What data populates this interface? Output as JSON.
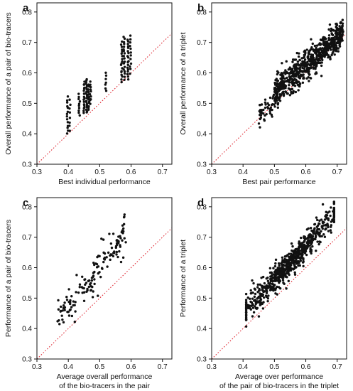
{
  "chart_data": [
    {
      "type": "scatter",
      "panel": "a",
      "xlabel": [
        "Best individual performance"
      ],
      "ylabel": [
        "Overall performance of a pair of bio-tracers"
      ],
      "xlim": [
        0.3,
        0.73
      ],
      "ylim": [
        0.3,
        0.83
      ],
      "xticks": [
        "0.3",
        "0.4",
        "0.5",
        "0.6",
        "0.7"
      ],
      "yticks": [
        "0.3",
        "0.4",
        "0.5",
        "0.6",
        "0.7",
        "0.8"
      ],
      "reference_line": {
        "style": "dotted",
        "color": "#e0303a",
        "equation": "y = x"
      },
      "point_color": "#111111",
      "clusters": [
        {
          "x": 0.397,
          "ymin": 0.4,
          "ymax": 0.52,
          "n": 14
        },
        {
          "x": 0.405,
          "ymin": 0.41,
          "ymax": 0.51,
          "n": 8
        },
        {
          "x": 0.435,
          "ymin": 0.46,
          "ymax": 0.53,
          "n": 10
        },
        {
          "x": 0.45,
          "ymin": 0.47,
          "ymax": 0.57,
          "n": 18
        },
        {
          "x": 0.458,
          "ymin": 0.47,
          "ymax": 0.58,
          "n": 20
        },
        {
          "x": 0.465,
          "ymin": 0.48,
          "ymax": 0.56,
          "n": 14
        },
        {
          "x": 0.47,
          "ymin": 0.5,
          "ymax": 0.57,
          "n": 10
        },
        {
          "x": 0.52,
          "ymin": 0.54,
          "ymax": 0.6,
          "n": 7
        },
        {
          "x": 0.57,
          "ymin": 0.57,
          "ymax": 0.7,
          "n": 18
        },
        {
          "x": 0.578,
          "ymin": 0.58,
          "ymax": 0.72,
          "n": 18
        },
        {
          "x": 0.59,
          "ymin": 0.58,
          "ymax": 0.71,
          "n": 18
        },
        {
          "x": 0.598,
          "ymin": 0.6,
          "ymax": 0.72,
          "n": 12
        }
      ]
    },
    {
      "type": "scatter",
      "panel": "b",
      "xlabel": [
        "Best pair performance"
      ],
      "ylabel": [
        "Overall performance of a triplet"
      ],
      "xlim": [
        0.3,
        0.73
      ],
      "ylim": [
        0.3,
        0.83
      ],
      "xticks": [
        "0.3",
        "0.4",
        "0.5",
        "0.6",
        "0.7"
      ],
      "yticks": [
        "0.3",
        "0.4",
        "0.5",
        "0.6",
        "0.7",
        "0.8"
      ],
      "reference_line": {
        "style": "dotted",
        "color": "#e0303a",
        "equation": "y = x"
      },
      "point_color": "#111111",
      "bands": [
        {
          "xmin": 0.45,
          "xmax": 0.72,
          "intercept": 0.005,
          "slope": 1.0,
          "spread": 0.018,
          "n": 260
        },
        {
          "xmin": 0.5,
          "xmax": 0.72,
          "intercept": 0.1,
          "slope": 0.89,
          "spread": 0.022,
          "n": 480
        }
      ]
    },
    {
      "type": "scatter",
      "panel": "c",
      "xlabel": [
        "Average overall performance",
        "of the bio-tracers in the pair"
      ],
      "ylabel": [
        "Performance of a pair of bio-tracers"
      ],
      "xlim": [
        0.3,
        0.73
      ],
      "ylim": [
        0.3,
        0.83
      ],
      "xticks": [
        "0.3",
        "0.4",
        "0.5",
        "0.6",
        "0.7"
      ],
      "yticks": [
        "0.3",
        "0.4",
        "0.5",
        "0.6",
        "0.7",
        "0.8"
      ],
      "reference_line": {
        "style": "dotted",
        "color": "#e0303a",
        "equation": "y = x"
      },
      "point_color": "#111111",
      "bands": [
        {
          "xmin": 0.365,
          "xmax": 0.585,
          "intercept": -0.06,
          "slope": 1.34,
          "spread": 0.028,
          "n": 150
        }
      ]
    },
    {
      "type": "scatter",
      "panel": "d",
      "xlabel": [
        "Average over performance",
        "of the pair of bio-tracers in the triplet"
      ],
      "ylabel": [
        "Performance of a triplet"
      ],
      "xlim": [
        0.3,
        0.73
      ],
      "ylim": [
        0.3,
        0.83
      ],
      "xticks": [
        "0.3",
        "0.4",
        "0.5",
        "0.6",
        "0.7"
      ],
      "yticks": [
        "0.3",
        "0.4",
        "0.5",
        "0.6",
        "0.7",
        "0.8"
      ],
      "reference_line": {
        "style": "dotted",
        "color": "#e0303a",
        "equation": "y = x"
      },
      "point_color": "#111111",
      "bands": [
        {
          "xmin": 0.41,
          "xmax": 0.69,
          "intercept": 0.0,
          "slope": 1.12,
          "spread": 0.022,
          "n": 700
        }
      ]
    }
  ]
}
